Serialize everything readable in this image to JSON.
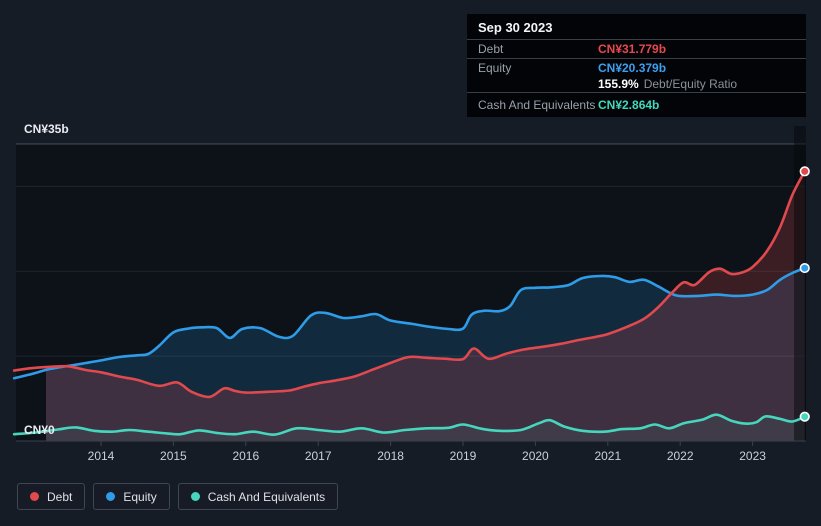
{
  "y_axis": {
    "top_label": "CN¥35b",
    "bottom_label": "CN¥0"
  },
  "tooltip": {
    "date": "Sep 30 2023",
    "debt_label": "Debt",
    "debt_value": "CN¥31.779b",
    "equity_label": "Equity",
    "equity_value": "CN¥20.379b",
    "ratio_value": "155.9%",
    "ratio_label": "Debt/Equity Ratio",
    "cash_label": "Cash And Equivalents",
    "cash_value": "CN¥2.864b"
  },
  "legend": {
    "items": [
      {
        "label": "Debt",
        "color": "#e0494d"
      },
      {
        "label": "Equity",
        "color": "#2f9ce8"
      },
      {
        "label": "Cash And Equivalents",
        "color": "#45d6bd"
      }
    ]
  },
  "chart_data": {
    "type": "area",
    "unit": "CN¥ billions",
    "ylim": [
      0,
      35
    ],
    "grid_values": [
      35,
      30,
      20,
      10
    ],
    "x_ticks": [
      2014,
      2015,
      2016,
      2017,
      2018,
      2019,
      2020,
      2021,
      2022,
      2023
    ],
    "x_tick_labels": [
      "2014",
      "2015",
      "2016",
      "2017",
      "2018",
      "2019",
      "2020",
      "2021",
      "2022",
      "2023"
    ],
    "legend_position": "bottom-left",
    "latest": {
      "date": "Sep 30 2023",
      "debt": 31.779,
      "equity": 20.379,
      "cash_and_equivalents": 2.864,
      "debt_equity_ratio_pct": 155.9
    },
    "series": [
      {
        "name": "Debt",
        "color": "#e0494d",
        "fill_opacity": 0.22,
        "points": [
          [
            2012.8,
            8.3
          ],
          [
            2013.0,
            8.55
          ],
          [
            2013.3,
            8.75
          ],
          [
            2013.55,
            8.8
          ],
          [
            2013.8,
            8.35
          ],
          [
            2014.0,
            8.1
          ],
          [
            2014.25,
            7.6
          ],
          [
            2014.5,
            7.2
          ],
          [
            2014.8,
            6.5
          ],
          [
            2015.05,
            6.9
          ],
          [
            2015.25,
            5.8
          ],
          [
            2015.5,
            5.2
          ],
          [
            2015.7,
            6.2
          ],
          [
            2015.85,
            5.9
          ],
          [
            2016.0,
            5.7
          ],
          [
            2016.3,
            5.8
          ],
          [
            2016.6,
            5.95
          ],
          [
            2016.8,
            6.4
          ],
          [
            2017.0,
            6.8
          ],
          [
            2017.25,
            7.15
          ],
          [
            2017.5,
            7.6
          ],
          [
            2017.75,
            8.4
          ],
          [
            2018.0,
            9.2
          ],
          [
            2018.25,
            9.9
          ],
          [
            2018.5,
            9.8
          ],
          [
            2018.75,
            9.7
          ],
          [
            2019.0,
            9.65
          ],
          [
            2019.15,
            10.9
          ],
          [
            2019.35,
            9.7
          ],
          [
            2019.6,
            10.3
          ],
          [
            2019.85,
            10.8
          ],
          [
            2020.1,
            11.1
          ],
          [
            2020.35,
            11.45
          ],
          [
            2020.6,
            11.9
          ],
          [
            2020.85,
            12.3
          ],
          [
            2021.0,
            12.6
          ],
          [
            2021.25,
            13.4
          ],
          [
            2021.5,
            14.4
          ],
          [
            2021.7,
            15.8
          ],
          [
            2021.9,
            17.6
          ],
          [
            2022.05,
            18.7
          ],
          [
            2022.2,
            18.4
          ],
          [
            2022.4,
            19.9
          ],
          [
            2022.55,
            20.3
          ],
          [
            2022.7,
            19.7
          ],
          [
            2022.85,
            19.85
          ],
          [
            2023.0,
            20.5
          ],
          [
            2023.2,
            22.4
          ],
          [
            2023.38,
            25.2
          ],
          [
            2023.55,
            29.0
          ],
          [
            2023.72,
            31.779
          ]
        ]
      },
      {
        "name": "Equity",
        "color": "#2f9ce8",
        "fill_opacity": 0.18,
        "points": [
          [
            2012.8,
            7.4
          ],
          [
            2013.0,
            7.8
          ],
          [
            2013.3,
            8.5
          ],
          [
            2013.55,
            8.85
          ],
          [
            2013.8,
            9.2
          ],
          [
            2014.0,
            9.5
          ],
          [
            2014.25,
            9.9
          ],
          [
            2014.5,
            10.1
          ],
          [
            2014.65,
            10.25
          ],
          [
            2014.8,
            11.2
          ],
          [
            2015.0,
            12.8
          ],
          [
            2015.2,
            13.25
          ],
          [
            2015.4,
            13.4
          ],
          [
            2015.6,
            13.3
          ],
          [
            2015.78,
            12.15
          ],
          [
            2015.95,
            13.2
          ],
          [
            2016.2,
            13.3
          ],
          [
            2016.45,
            12.3
          ],
          [
            2016.65,
            12.4
          ],
          [
            2016.9,
            14.8
          ],
          [
            2017.1,
            15.1
          ],
          [
            2017.35,
            14.5
          ],
          [
            2017.6,
            14.7
          ],
          [
            2017.8,
            14.95
          ],
          [
            2018.0,
            14.2
          ],
          [
            2018.3,
            13.8
          ],
          [
            2018.55,
            13.45
          ],
          [
            2018.8,
            13.2
          ],
          [
            2019.0,
            13.25
          ],
          [
            2019.12,
            14.9
          ],
          [
            2019.3,
            15.35
          ],
          [
            2019.5,
            15.3
          ],
          [
            2019.65,
            15.9
          ],
          [
            2019.8,
            17.8
          ],
          [
            2020.0,
            18.05
          ],
          [
            2020.2,
            18.1
          ],
          [
            2020.45,
            18.35
          ],
          [
            2020.65,
            19.2
          ],
          [
            2020.9,
            19.45
          ],
          [
            2021.1,
            19.3
          ],
          [
            2021.3,
            18.75
          ],
          [
            2021.5,
            19.0
          ],
          [
            2021.7,
            18.2
          ],
          [
            2021.95,
            17.15
          ],
          [
            2022.25,
            17.1
          ],
          [
            2022.5,
            17.25
          ],
          [
            2022.75,
            17.1
          ],
          [
            2023.0,
            17.25
          ],
          [
            2023.2,
            17.8
          ],
          [
            2023.38,
            19.0
          ],
          [
            2023.55,
            19.8
          ],
          [
            2023.72,
            20.379
          ]
        ]
      },
      {
        "name": "Cash And Equivalents",
        "color": "#45d6bd",
        "fill_opacity": 0.07,
        "points": [
          [
            2012.8,
            0.8
          ],
          [
            2013.1,
            1.0
          ],
          [
            2013.4,
            1.35
          ],
          [
            2013.65,
            1.6
          ],
          [
            2013.9,
            1.2
          ],
          [
            2014.15,
            1.1
          ],
          [
            2014.4,
            1.3
          ],
          [
            2014.65,
            1.1
          ],
          [
            2014.9,
            0.9
          ],
          [
            2015.1,
            0.8
          ],
          [
            2015.35,
            1.25
          ],
          [
            2015.6,
            0.95
          ],
          [
            2015.85,
            0.8
          ],
          [
            2016.1,
            1.1
          ],
          [
            2016.4,
            0.75
          ],
          [
            2016.7,
            1.5
          ],
          [
            2017.0,
            1.3
          ],
          [
            2017.3,
            1.1
          ],
          [
            2017.6,
            1.5
          ],
          [
            2017.9,
            1.0
          ],
          [
            2018.2,
            1.3
          ],
          [
            2018.5,
            1.5
          ],
          [
            2018.8,
            1.55
          ],
          [
            2019.0,
            1.95
          ],
          [
            2019.25,
            1.45
          ],
          [
            2019.5,
            1.2
          ],
          [
            2019.8,
            1.3
          ],
          [
            2020.05,
            2.1
          ],
          [
            2020.2,
            2.45
          ],
          [
            2020.4,
            1.7
          ],
          [
            2020.65,
            1.2
          ],
          [
            2020.95,
            1.1
          ],
          [
            2021.2,
            1.4
          ],
          [
            2021.45,
            1.5
          ],
          [
            2021.65,
            1.95
          ],
          [
            2021.85,
            1.5
          ],
          [
            2022.05,
            2.1
          ],
          [
            2022.3,
            2.5
          ],
          [
            2022.5,
            3.1
          ],
          [
            2022.7,
            2.4
          ],
          [
            2022.9,
            2.05
          ],
          [
            2023.05,
            2.2
          ],
          [
            2023.18,
            2.9
          ],
          [
            2023.38,
            2.6
          ],
          [
            2023.55,
            2.3
          ],
          [
            2023.72,
            2.864
          ]
        ]
      }
    ]
  }
}
